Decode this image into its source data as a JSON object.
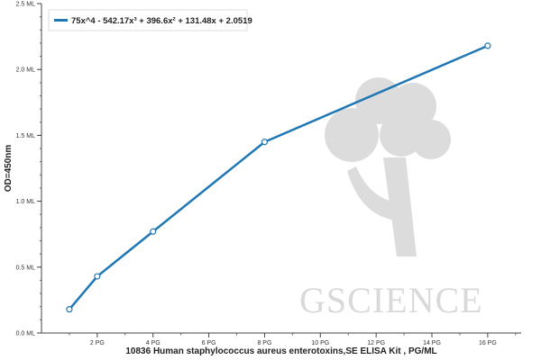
{
  "colors": {
    "series": "#1f77b4",
    "axis": "#444444",
    "watermark": "#d9d9d9"
  },
  "watermark": {
    "text": "GSCIENCE",
    "icon": "tree-logo-icon"
  },
  "chart_data": {
    "type": "line",
    "title": "",
    "xlabel": "10836 Human staphylococcus aureus enterotoxins,SE ELISA Kit , PG/ML",
    "ylabel": "OD=450nm",
    "xlim": [
      0,
      17.2
    ],
    "ylim": [
      0,
      2.5
    ],
    "x_ticks": [
      2,
      4,
      6,
      8,
      10,
      12,
      14,
      16
    ],
    "x_tick_labels": [
      "2 PG",
      "4 PG",
      "6 PG",
      "8 PG",
      "10 PG",
      "12 PG",
      "14 PG",
      "16 PG"
    ],
    "y_ticks": [
      0.0,
      0.5,
      1.0,
      1.5,
      2.0,
      2.5
    ],
    "y_tick_labels": [
      "0.0 ML",
      "0.5 ML",
      "1.0 ML",
      "1.5 ML",
      "2.0 ML",
      "2.5 ML"
    ],
    "legend_position": "top-left",
    "series": [
      {
        "name": "75x^4 - 542.17x³ + 396.6x² + 131.48x + 2.0519",
        "x": [
          1,
          2,
          4,
          8,
          16
        ],
        "y": [
          0.18,
          0.43,
          0.77,
          1.45,
          2.18
        ]
      }
    ]
  }
}
